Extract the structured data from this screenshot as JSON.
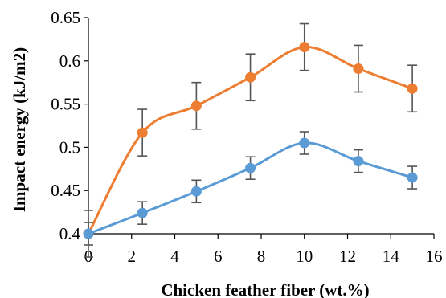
{
  "chart_data": {
    "type": "line",
    "title": "",
    "xlabel": "Chicken feather fiber (wt.%)",
    "ylabel": "Impact energy (kJ/m2)",
    "xlim": [
      0,
      16
    ],
    "ylim": [
      0.4,
      0.65
    ],
    "x_ticks": [
      0,
      2,
      4,
      6,
      8,
      10,
      12,
      14,
      16
    ],
    "x_tick_labels": [
      "0",
      "2",
      "4",
      "6",
      "8",
      "10",
      "12",
      "14",
      "16"
    ],
    "y_ticks": [
      0.4,
      0.45,
      0.5,
      0.55,
      0.6,
      0.65
    ],
    "y_tick_labels": [
      "0.4",
      "0.45",
      "0.5",
      "0.55",
      "0.6",
      "0.65"
    ],
    "grid": false,
    "legend": "none",
    "smooth": true,
    "series": [
      {
        "color": "#ED7D31",
        "x": [
          0,
          2.5,
          5,
          7.5,
          10,
          12.5,
          15
        ],
        "y": [
          0.4,
          0.517,
          0.548,
          0.581,
          0.616,
          0.591,
          0.568
        ],
        "error": [
          0.027,
          0.027,
          0.027,
          0.027,
          0.027,
          0.027,
          0.027
        ]
      },
      {
        "color": "#5B9BD5",
        "x": [
          0,
          2.5,
          5,
          7.5,
          10,
          12.5,
          15
        ],
        "y": [
          0.4,
          0.424,
          0.449,
          0.476,
          0.505,
          0.484,
          0.465
        ],
        "error": [
          0.013,
          0.013,
          0.013,
          0.013,
          0.013,
          0.013,
          0.013
        ]
      }
    ]
  }
}
